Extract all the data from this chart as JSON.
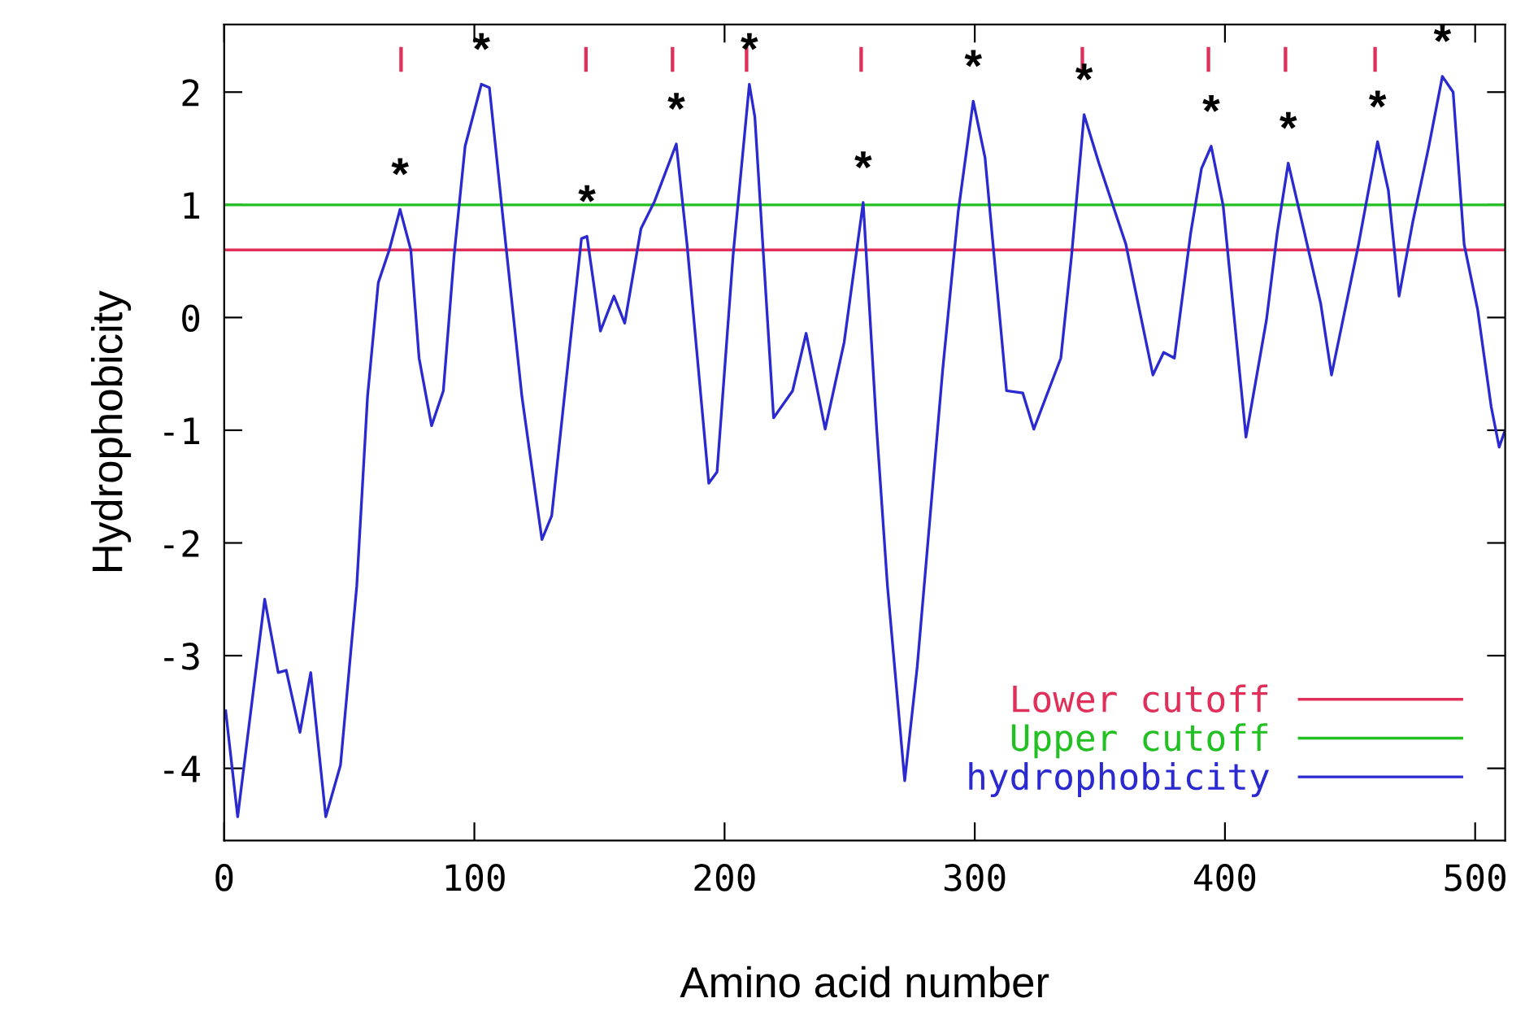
{
  "chart_data": {
    "type": "line",
    "xlabel": "Amino acid number",
    "ylabel": "Hydrophobicity",
    "xlim": [
      0,
      512
    ],
    "ylim": [
      -4.64,
      2.6
    ],
    "xticks": [
      0,
      100,
      200,
      300,
      400,
      500
    ],
    "yticks": [
      -4,
      -3,
      -2,
      -1,
      0,
      1,
      2
    ],
    "grid": false,
    "legend": "bottom right",
    "line_style": "solid",
    "ref_lines": [
      {
        "axis": "y",
        "value": 0.6,
        "label": "Lower cutoff",
        "color": "#e0305a"
      },
      {
        "axis": "y",
        "value": 1.0,
        "label": "Upper cutoff",
        "color": "#22c022"
      }
    ],
    "series": [
      {
        "name": "hydrophobicity",
        "color": "#2a2ad0",
        "x": [
          0.6,
          5.4,
          16.2,
          21.6,
          24.8,
          30.3,
          34.6,
          40.6,
          46.5,
          53,
          57.3,
          61.6,
          66,
          70.3,
          74.6,
          77.9,
          82.9,
          87.6,
          91.9,
          96.3,
          102.8,
          106,
          111.4,
          119,
          127,
          130.9,
          137.4,
          142.8,
          145,
          150.4,
          155.8,
          160.1,
          166.6,
          172,
          180.7,
          185,
          193.7,
          197,
          203.4,
          209.9,
          212.1,
          219.6,
          227.2,
          232.6,
          240.2,
          247.8,
          255.4,
          260.8,
          265.1,
          272,
          277,
          287.2,
          293.4,
          299.4,
          304.1,
          312.7,
          319.2,
          323.6,
          334.4,
          338.7,
          343.7,
          349.6,
          360.4,
          371.2,
          375.5,
          379.8,
          386.3,
          390.6,
          394.5,
          399.3,
          408.4,
          416.6,
          420.9,
          425.3,
          431.8,
          438.3,
          442.6,
          453.4,
          461,
          465.3,
          469.6,
          475,
          481.5,
          486.9,
          491.2,
          495.6,
          501,
          506.4,
          509.6,
          511.8
        ],
        "values": [
          -3.49,
          -4.43,
          -2.5,
          -3.15,
          -3.13,
          -3.68,
          -3.15,
          -4.43,
          -3.97,
          -2.38,
          -0.7,
          0.31,
          0.6,
          0.96,
          0.6,
          -0.36,
          -0.96,
          -0.65,
          0.55,
          1.52,
          2.07,
          2.04,
          0.89,
          -0.7,
          -1.97,
          -1.76,
          -0.41,
          0.7,
          0.72,
          -0.12,
          0.19,
          -0.05,
          0.79,
          1.03,
          1.54,
          0.65,
          -1.47,
          -1.37,
          0.55,
          2.07,
          1.78,
          -0.89,
          -0.65,
          -0.14,
          -0.99,
          -0.22,
          1.02,
          -0.99,
          -2.38,
          -4.11,
          -3.1,
          -0.46,
          0.94,
          1.92,
          1.42,
          -0.65,
          -0.67,
          -0.99,
          -0.36,
          0.55,
          1.8,
          1.37,
          0.65,
          -0.51,
          -0.31,
          -0.36,
          0.75,
          1.32,
          1.52,
          0.99,
          -1.06,
          -0.02,
          0.75,
          1.37,
          0.75,
          0.12,
          -0.51,
          0.65,
          1.56,
          1.13,
          0.19,
          0.84,
          1.52,
          2.14,
          2.0,
          0.65,
          0.07,
          -0.79,
          -1.15,
          -1.01
        ]
      },
      {
        "color": "#e0305a",
        "type": "bar",
        "x": [
          70.7,
          144.6,
          179.2,
          208.8,
          254.6,
          343,
          393.4,
          424.2,
          460
        ],
        "base": [
          2.18,
          2.18,
          2.18,
          2.18,
          2.18,
          2.18,
          2.18,
          2.18,
          2.18
        ],
        "values": [
          0.22,
          0.22,
          0.22,
          0.22,
          0.22,
          0.22,
          0.22,
          0.22,
          0.22
        ]
      }
    ],
    "annotations": [
      {
        "text": "*",
        "x": 70.3,
        "y": 0.96
      },
      {
        "text": "*",
        "x": 102.8,
        "y": 2.07
      },
      {
        "text": "*",
        "x": 145,
        "y": 0.72
      },
      {
        "text": "*",
        "x": 180.7,
        "y": 1.54
      },
      {
        "text": "*",
        "x": 209.9,
        "y": 2.07
      },
      {
        "text": "*",
        "x": 255.4,
        "y": 1.02
      },
      {
        "text": "*",
        "x": 299.4,
        "y": 1.92
      },
      {
        "text": "*",
        "x": 343.7,
        "y": 1.8
      },
      {
        "text": "*",
        "x": 394.5,
        "y": 1.52
      },
      {
        "text": "*",
        "x": 425.3,
        "y": 1.37
      },
      {
        "text": "*",
        "x": 461,
        "y": 1.56
      },
      {
        "text": "*",
        "x": 486.9,
        "y": 2.14
      }
    ]
  }
}
